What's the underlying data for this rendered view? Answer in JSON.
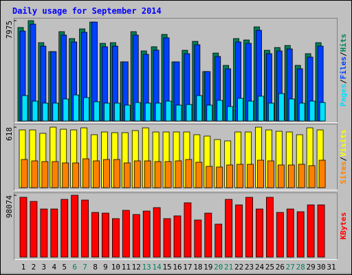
{
  "chart_data": [
    {
      "type": "bar",
      "title": "Daily usage for September 2014",
      "ylim": [
        0,
        7975
      ],
      "yticks": [
        7975
      ],
      "legend_separator": "/",
      "series": [
        {
          "name": "Hits",
          "color": "#00805c",
          "values": [
            7429,
            7975,
            6225,
            5515,
            7100,
            6550,
            7320,
            7860,
            6170,
            6225,
            4700,
            7100,
            5570,
            5900,
            6880,
            4700,
            5620,
            6330,
            3930,
            5400,
            4420,
            6550,
            6440,
            7480,
            5620,
            5840,
            6000,
            4420,
            5350,
            6225,
            0
          ]
        },
        {
          "name": "Files",
          "color": "#0040ff",
          "values": [
            7150,
            7700,
            5950,
            5515,
            6830,
            6280,
            7050,
            7860,
            5900,
            5950,
            4700,
            6830,
            5300,
            5630,
            6610,
            4700,
            5350,
            6060,
            3930,
            5130,
            4150,
            6280,
            6170,
            7210,
            5350,
            5570,
            5730,
            4150,
            5080,
            5950,
            0
          ]
        },
        {
          "name": "Pages",
          "color": "#00e0ff",
          "values": [
            2020,
            1580,
            1420,
            1420,
            1750,
            2070,
            1860,
            1530,
            1420,
            1420,
            1260,
            1470,
            1420,
            1420,
            1580,
            1260,
            1310,
            2020,
            1260,
            1640,
            1150,
            1800,
            1580,
            1970,
            1420,
            2180,
            1750,
            1420,
            1580,
            1470,
            0
          ]
        }
      ]
    },
    {
      "type": "bar",
      "ylim": [
        0,
        618
      ],
      "yticks": [
        618
      ],
      "legend_separator": "/",
      "series": [
        {
          "name": "Visits",
          "color": "#ffff00",
          "values": [
            590,
            590,
            555,
            618,
            597,
            590,
            611,
            541,
            569,
            562,
            562,
            583,
            611,
            569,
            569,
            569,
            569,
            541,
            527,
            492,
            478,
            569,
            569,
            618,
            590,
            576,
            569,
            541,
            611,
            590,
            0
          ]
        },
        {
          "name": "Sites",
          "color": "#ff8000",
          "values": [
            288,
            274,
            267,
            267,
            253,
            253,
            295,
            274,
            288,
            288,
            253,
            274,
            274,
            267,
            267,
            274,
            288,
            260,
            218,
            211,
            232,
            239,
            239,
            281,
            274,
            232,
            232,
            239,
            225,
            281,
            0
          ]
        }
      ]
    },
    {
      "type": "bar",
      "ylim": [
        0,
        98074
      ],
      "yticks": [
        98074
      ],
      "categories": [
        "1",
        "2",
        "3",
        "4",
        "5",
        "6",
        "7",
        "8",
        "9",
        "10",
        "11",
        "12",
        "13",
        "14",
        "15",
        "16",
        "17",
        "18",
        "19",
        "20",
        "21",
        "22",
        "23",
        "24",
        "25",
        "26",
        "27",
        "28",
        "29",
        "30",
        "31"
      ],
      "category_colors": [
        "#000000",
        "#000000",
        "#000000",
        "#000000",
        "#000000",
        "#00805c",
        "#00805c",
        "#000000",
        "#000000",
        "#000000",
        "#000000",
        "#000000",
        "#00805c",
        "#00805c",
        "#000000",
        "#000000",
        "#000000",
        "#000000",
        "#000000",
        "#00805c",
        "#00805c",
        "#000000",
        "#000000",
        "#000000",
        "#000000",
        "#000000",
        "#00805c",
        "#00805c",
        "#000000",
        "#000000",
        "#000000"
      ],
      "series": [
        {
          "name": "KBytes",
          "color": "#ff0000",
          "values": [
            94830,
            88290,
            76300,
            76300,
            91560,
            98074,
            90470,
            70850,
            69760,
            61040,
            74120,
            67580,
            73030,
            78480,
            61040,
            65400,
            86110,
            58860,
            69760,
            52320,
            91560,
            82840,
            94830,
            76300,
            94830,
            70850,
            76300,
            71940,
            82840,
            82840,
            0
          ]
        }
      ]
    }
  ]
}
